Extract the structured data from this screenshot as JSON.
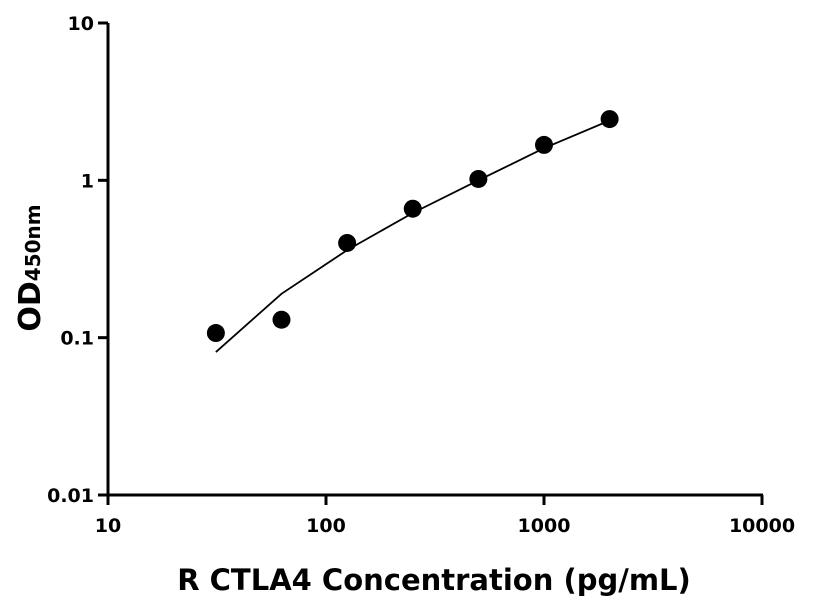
{
  "chart_data": {
    "type": "scatter",
    "x_label": "R CTLA4 Concentration (pg/mL)",
    "y_label": "OD",
    "y_label_subscript": "450nm",
    "x": [
      31.25,
      62.5,
      125,
      250,
      500,
      1000,
      2000
    ],
    "series": [
      {
        "color": "#000000",
        "mode": "markers",
        "values": [
          0.107,
          0.13,
          0.4,
          0.66,
          1.02,
          1.68,
          2.45
        ]
      },
      {
        "color": "#000000",
        "mode": "line",
        "values": [
          0.081,
          0.19,
          0.36,
          0.62,
          1.0,
          1.6,
          2.4
        ]
      }
    ],
    "log_x": true,
    "log_y": true,
    "xlim": [
      10,
      10000
    ],
    "xticks": [
      10,
      100,
      1000,
      10000
    ],
    "ylim": [
      0.01,
      10
    ],
    "yticks": [
      0.01,
      0.1,
      1,
      10
    ]
  }
}
